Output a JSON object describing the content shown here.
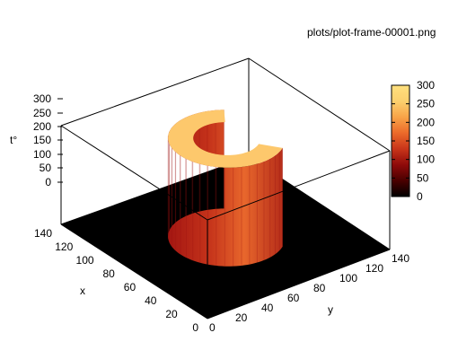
{
  "chart_data": {
    "type": "surface",
    "title": "plots/plot-frame-00001.png",
    "xlabel": "x",
    "ylabel": "y",
    "zlabel": "t°",
    "xlim": [
      0,
      140
    ],
    "ylim": [
      0,
      140
    ],
    "zlim": [
      0,
      300
    ],
    "x_ticks": [
      "0",
      "20",
      "40",
      "60",
      "80",
      "100",
      "120",
      "140"
    ],
    "y_ticks": [
      "0",
      "20",
      "40",
      "60",
      "80",
      "100",
      "120",
      "140"
    ],
    "z_ticks": [
      "0",
      "50",
      "100",
      "150",
      "200",
      "250",
      "300"
    ],
    "colorbar": {
      "range": [
        0,
        300
      ],
      "ticks": [
        "0",
        "50",
        "100",
        "150",
        "200",
        "250",
        "300"
      ],
      "palette": [
        "#000000",
        "#4a0000",
        "#8f0a0a",
        "#c8351a",
        "#ec6a2a",
        "#f8a448",
        "#fcd06e",
        "#ffe07e"
      ]
    },
    "field": {
      "base_value": 0,
      "annulus": {
        "center": [
          70,
          70
        ],
        "outer_radius": 35,
        "inner_radius": 20,
        "opening_direction": "+y",
        "opening_half_angle_deg": 55,
        "top_value": 300
      }
    },
    "grid": false,
    "colors": {
      "base": "#000000",
      "top": "#fdc86c",
      "wall_dark": "#9c1010",
      "wall_mid": "#c4321a",
      "wall_light": "#e8672c"
    }
  }
}
